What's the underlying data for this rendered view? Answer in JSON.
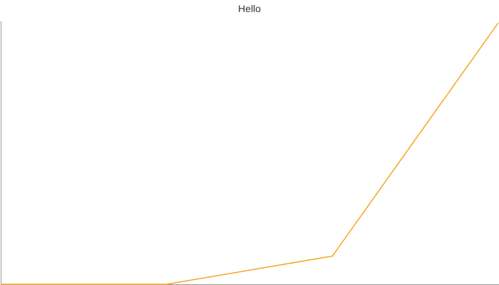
{
  "chart_data": {
    "type": "line",
    "title": "Hello",
    "xlabel": "",
    "ylabel": "",
    "categories": [
      "",
      "",
      "",
      ""
    ],
    "series": [
      {
        "values": [
          0,
          0,
          1.1,
          10.2
        ],
        "color": "#f5a623"
      }
    ],
    "ylim": [
      0,
      10.2
    ],
    "grid": false,
    "legend": "none"
  },
  "colors": {
    "line": "#f5a623",
    "axis": "#999999",
    "title": "#333333"
  }
}
